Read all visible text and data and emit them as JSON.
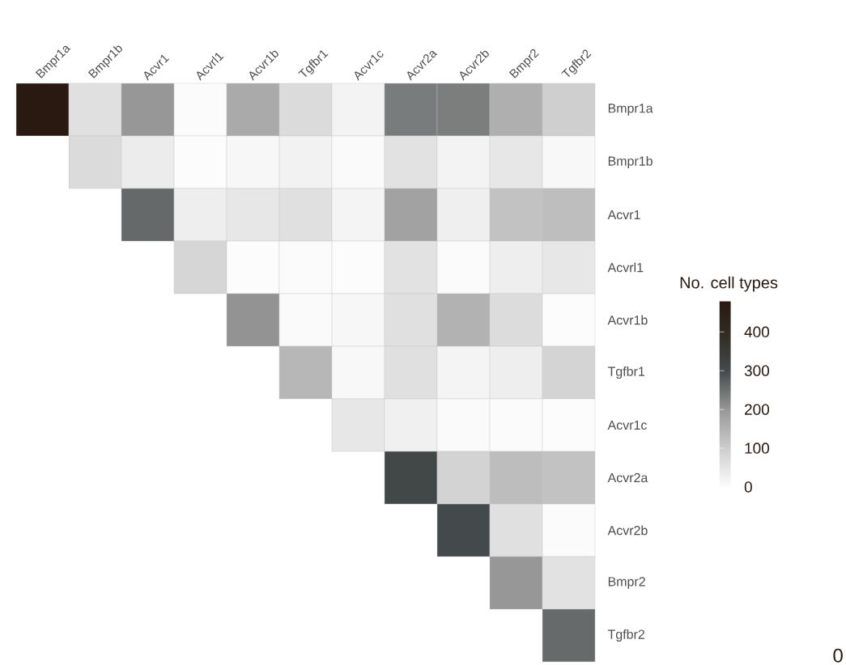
{
  "chart_data": {
    "type": "heatmap",
    "categories": [
      "Bmpr1a",
      "Bmpr1b",
      "Acvr1",
      "Acvrl1",
      "Acvr1b",
      "Tgfbr1",
      "Acvr1c",
      "Acvr2a",
      "Acvr2b",
      "Bmpr2",
      "Tgfbr2"
    ],
    "y_categories": [
      "Bmpr1a",
      "Bmpr1b",
      "Acvr1",
      "Acvrl1",
      "Acvr1b",
      "Tgfbr1",
      "Acvr1c",
      "Acvr2a",
      "Acvr2b",
      "Bmpr2",
      "Tgfbr2"
    ],
    "cells": [
      [
        475,
        60,
        200,
        3,
        165,
        70,
        20,
        235,
        232,
        155,
        95
      ],
      [
        null,
        70,
        35,
        0,
        10,
        22,
        5,
        55,
        20,
        45,
        8
      ],
      [
        null,
        null,
        260,
        30,
        45,
        60,
        18,
        180,
        28,
        120,
        128
      ],
      [
        null,
        null,
        null,
        80,
        0,
        3,
        0,
        55,
        2,
        30,
        45
      ],
      [
        null,
        null,
        null,
        null,
        205,
        5,
        10,
        60,
        150,
        68,
        1
      ],
      [
        null,
        null,
        null,
        null,
        null,
        140,
        8,
        60,
        18,
        30,
        85
      ],
      [
        null,
        null,
        null,
        null,
        null,
        null,
        45,
        25,
        5,
        3,
        0
      ],
      [
        null,
        null,
        null,
        null,
        null,
        null,
        null,
        310,
        88,
        130,
        120
      ],
      [
        null,
        null,
        null,
        null,
        null,
        null,
        null,
        null,
        300,
        60,
        3
      ],
      [
        null,
        null,
        null,
        null,
        null,
        null,
        null,
        null,
        null,
        200,
        55
      ],
      [
        null,
        null,
        null,
        null,
        null,
        null,
        null,
        null,
        null,
        null,
        258
      ]
    ],
    "clabel": "No. cell types",
    "clim": [
      0,
      480
    ],
    "cticks": [
      0,
      100,
      200,
      300,
      400
    ],
    "annotations": [
      "0"
    ]
  }
}
